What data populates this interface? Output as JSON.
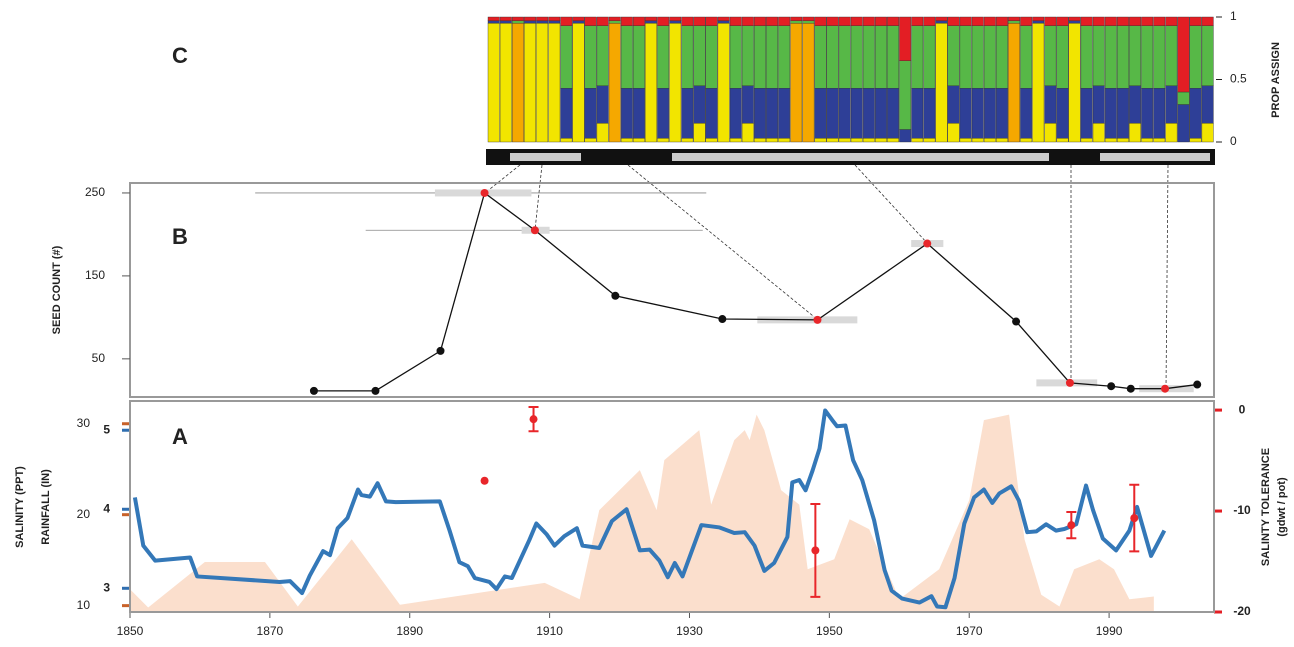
{
  "chart_data": [
    {
      "type": "bar",
      "title": "C",
      "ylabel": "PROP ASSIGN",
      "ylim": [
        0,
        1
      ],
      "yticks": [
        0,
        0.5,
        1
      ],
      "series": [
        {
          "color": "#f2e500",
          "values": [
            0.95,
            0.95,
            0,
            0.95,
            0.95,
            0.95,
            0.03,
            0.95,
            0.03,
            0.15,
            0,
            0.03,
            0.03,
            0.95,
            0.03,
            0.95,
            0.03,
            0.15,
            0.03,
            0.95,
            0.03,
            0.15,
            0.03,
            0.03,
            0.03,
            0,
            0,
            0.03,
            0.03,
            0.03,
            0.03,
            0.03,
            0.03,
            0.03,
            0,
            0.03,
            0.03,
            0.95,
            0.15,
            0.03,
            0.03,
            0.03,
            0.03,
            0,
            0.03,
            0.95,
            0.15,
            0.03,
            0.95,
            0.03,
            0.15,
            0.03,
            0.03,
            0.15,
            0.03,
            0.03,
            0.15,
            0,
            0.03,
            0.15
          ]
        },
        {
          "color": "#f5a800",
          "values": [
            0,
            0,
            0.95,
            0,
            0,
            0,
            0,
            0,
            0,
            0,
            0.95,
            0,
            0,
            0,
            0,
            0,
            0,
            0,
            0,
            0,
            0,
            0,
            0,
            0,
            0,
            0.95,
            0.95,
            0,
            0,
            0,
            0,
            0,
            0,
            0,
            0,
            0,
            0,
            0,
            0,
            0,
            0,
            0,
            0,
            0.95,
            0,
            0,
            0,
            0,
            0,
            0,
            0,
            0,
            0,
            0,
            0,
            0,
            0,
            0,
            0,
            0
          ]
        },
        {
          "color": "#2e3f97",
          "values": [
            0.02,
            0.02,
            0,
            0.02,
            0.02,
            0.02,
            0.4,
            0.02,
            0.4,
            0.3,
            0,
            0.4,
            0.4,
            0.02,
            0.4,
            0.02,
            0.4,
            0.3,
            0.4,
            0.02,
            0.4,
            0.3,
            0.4,
            0.4,
            0.4,
            0,
            0,
            0.4,
            0.4,
            0.4,
            0.4,
            0.4,
            0.4,
            0.4,
            0.1,
            0.4,
            0.4,
            0.02,
            0.3,
            0.4,
            0.4,
            0.4,
            0.4,
            0,
            0.4,
            0.02,
            0.3,
            0.4,
            0.02,
            0.4,
            0.3,
            0.4,
            0.4,
            0.3,
            0.4,
            0.4,
            0.3,
            0.3,
            0.4,
            0.3
          ]
        },
        {
          "color": "#57b847",
          "values": [
            0,
            0,
            0.02,
            0,
            0,
            0,
            0.5,
            0,
            0.5,
            0.48,
            0.02,
            0.5,
            0.5,
            0,
            0.5,
            0,
            0.5,
            0.48,
            0.5,
            0,
            0.5,
            0.48,
            0.5,
            0.5,
            0.5,
            0.02,
            0.02,
            0.5,
            0.5,
            0.5,
            0.5,
            0.5,
            0.5,
            0.5,
            0.55,
            0.5,
            0.5,
            0,
            0.48,
            0.5,
            0.5,
            0.5,
            0.5,
            0.02,
            0.5,
            0,
            0.48,
            0.5,
            0,
            0.5,
            0.48,
            0.5,
            0.5,
            0.48,
            0.5,
            0.5,
            0.48,
            0.1,
            0.5,
            0.48
          ]
        },
        {
          "color": "#e31e24",
          "values": [
            0.03,
            0.03,
            0.03,
            0.03,
            0.03,
            0.03,
            0.07,
            0.03,
            0.07,
            0.07,
            0.03,
            0.07,
            0.07,
            0.03,
            0.07,
            0.03,
            0.07,
            0.07,
            0.07,
            0.03,
            0.07,
            0.07,
            0.07,
            0.07,
            0.07,
            0.03,
            0.03,
            0.07,
            0.07,
            0.07,
            0.07,
            0.07,
            0.07,
            0.07,
            0.35,
            0.07,
            0.07,
            0.03,
            0.07,
            0.07,
            0.07,
            0.07,
            0.07,
            0.03,
            0.07,
            0.03,
            0.07,
            0.07,
            0.03,
            0.07,
            0.07,
            0.07,
            0.07,
            0.07,
            0.07,
            0.07,
            0.07,
            0.6,
            0.07,
            0.07
          ]
        }
      ]
    },
    {
      "type": "line",
      "title": "B",
      "ylabel": "SEED COUNT (#)",
      "xlim": [
        1850,
        2005
      ],
      "ylim": [
        4,
        262
      ],
      "yticks": [
        50,
        150,
        250
      ],
      "color": "#111111",
      "x": [
        1876.3,
        1885.1,
        1894.4,
        1900.7,
        1907.9,
        1919.4,
        1934.7,
        1948.3,
        1964,
        1976.7,
        1984.4,
        1990.3,
        1993.1,
        1998,
        2002.6
      ],
      "values": [
        11.4,
        11.4,
        59.6,
        250,
        205,
        126,
        98,
        97,
        189,
        95,
        21,
        17,
        14,
        14,
        19
      ],
      "point_colors": [
        "#111111",
        "#111111",
        "#111111",
        "#e8262a",
        "#e8262a",
        "#111111",
        "#111111",
        "#e8262a",
        "#e8262a",
        "#111111",
        "#e8262a",
        "#111111",
        "#111111",
        "#e8262a",
        "#111111"
      ],
      "range_bars": [
        {
          "x": [
            1893.6,
            1907.4
          ],
          "y": 250
        },
        {
          "x": [
            1906,
            1910
          ],
          "y": 205
        },
        {
          "x": [
            1939.7,
            1954
          ],
          "y": 97
        },
        {
          "x": [
            1961.7,
            1966.3
          ],
          "y": 189
        },
        {
          "x": [
            1979.6,
            1988.3
          ],
          "y": 21
        },
        {
          "x": [
            1994.3,
            2002.1
          ],
          "y": 14
        }
      ],
      "range_lines": [
        {
          "x": [
            1867.9,
            1932.4
          ],
          "y": 250
        },
        {
          "x": [
            1883.7,
            1931.9
          ],
          "y": 205
        }
      ]
    },
    {
      "type": "area_line",
      "title": "A",
      "xlim": [
        1850,
        2005
      ],
      "xticks": [
        1850,
        1870,
        1890,
        1910,
        1930,
        1950,
        1970,
        1990
      ],
      "ylabel": "RAINFALL (IN)",
      "ylim": [
        2.7,
        5.37
      ],
      "yticks": [
        3,
        4,
        5
      ],
      "salinity_label": "SALINITY (PPT)",
      "salinity_lim": [
        9.3,
        32.5
      ],
      "salinity_ticks": [
        10,
        20,
        30
      ],
      "y2label": [
        "SALINTY TOLERANCE",
        "(gdwt / pot)"
      ],
      "y2lim": [
        -20,
        0.9
      ],
      "y2ticks": [
        0,
        -10,
        -20
      ],
      "salinity": {
        "color": "#fbdfcd",
        "x": [
          1850,
          1852.6,
          1860.7,
          1869.3,
          1874,
          1881.7,
          1888.6,
          1909.3,
          1914.3,
          1917.1,
          1922.9,
          1925.3,
          1926.4,
          1931.4,
          1933.1,
          1936.4,
          1937.9,
          1938.6,
          1939.6,
          1940.7,
          1943.1,
          1945.7,
          1946.9,
          1950.7,
          1952.9,
          1955.7,
          1960,
          1965.7,
          1970,
          1972.1,
          1975.7,
          1977.9,
          1980.3,
          1982.9,
          1985,
          1988.6,
          1990.7,
          1992.9,
          1996.4
        ],
        "values": [
          11.8,
          9.8,
          14.8,
          14.8,
          9.9,
          17.3,
          10.1,
          12.5,
          10.7,
          20.5,
          24.9,
          20.5,
          26,
          29.3,
          21.1,
          28.2,
          29.3,
          28.2,
          31,
          29.3,
          22.7,
          21.1,
          14,
          15.1,
          19.5,
          18.4,
          10.7,
          14,
          21.6,
          30.4,
          31,
          17.3,
          11.2,
          9.9,
          14,
          15.1,
          14,
          10.7,
          11
        ]
      },
      "rainfall": {
        "color": "#3478b8",
        "x": [
          1850.7,
          1851.9,
          1853.6,
          1858.6,
          1859.6,
          1871.4,
          1872.9,
          1874.6,
          1875.7,
          1877.6,
          1878.6,
          1879.7,
          1881.1,
          1882.6,
          1883.1,
          1884.3,
          1885.4,
          1886.6,
          1888,
          1894.3,
          1895.7,
          1897.1,
          1898.3,
          1899.3,
          1901.4,
          1902.4,
          1903.6,
          1904.6,
          1907.1,
          1908.1,
          1909.6,
          1910.7,
          1912.1,
          1913.9,
          1914.7,
          1917.1,
          1918.9,
          1921,
          1922.9,
          1924.3,
          1925.7,
          1926.9,
          1927.9,
          1929,
          1929.7,
          1931.7,
          1934.3,
          1936.4,
          1937.9,
          1939.3,
          1940.7,
          1942.1,
          1944,
          1944.7,
          1945.7,
          1946.6,
          1947.6,
          1948.6,
          1949.4,
          1950.4,
          1951.1,
          1952.3,
          1953.4,
          1954.7,
          1956.4,
          1957.9,
          1958.9,
          1960.4,
          1962.9,
          1964.6,
          1965.4,
          1966.6,
          1967.9,
          1969.3,
          1970.7,
          1972.1,
          1973.3,
          1974.3,
          1976,
          1977.1,
          1978.3,
          1979.6,
          1981,
          1982.4,
          1983.6,
          1985.3,
          1986.7,
          1987.7,
          1989.1,
          1991,
          1992.9,
          1994,
          1996,
          1997.9
        ],
        "values": [
          4.15,
          3.54,
          3.35,
          3.39,
          3.15,
          3.08,
          3.09,
          2.94,
          3.16,
          3.47,
          3.42,
          3.76,
          3.89,
          4.25,
          4.18,
          4.16,
          4.33,
          4.1,
          4.09,
          4.1,
          3.73,
          3.33,
          3.28,
          3.13,
          3.08,
          2.99,
          3.15,
          3.13,
          3.61,
          3.82,
          3.68,
          3.54,
          3.66,
          3.76,
          3.54,
          3.51,
          3.85,
          4,
          3.48,
          3.49,
          3.35,
          3.14,
          3.32,
          3.15,
          3.32,
          3.8,
          3.77,
          3.7,
          3.71,
          3.54,
          3.22,
          3.32,
          3.65,
          4.34,
          4.37,
          4.24,
          4.49,
          4.77,
          5.25,
          5.13,
          5.05,
          5.06,
          4.62,
          4.37,
          3.86,
          3.23,
          2.97,
          2.87,
          2.82,
          2.9,
          2.77,
          2.76,
          3.13,
          3.82,
          4.15,
          4.25,
          4.08,
          4.2,
          4.29,
          4.11,
          3.71,
          3.72,
          3.81,
          3.73,
          3.75,
          3.81,
          4.3,
          3.99,
          3.63,
          3.48,
          3.73,
          4.03,
          3.41,
          3.73
        ]
      },
      "tolerance": {
        "color": "#e8262a",
        "x": [
          1900.7,
          1907.7,
          1948,
          1984.6,
          1993.6
        ],
        "values": [
          -7,
          -0.9,
          -13.9,
          -11.4,
          -10.7
        ],
        "errors": [
          null,
          1.2,
          4.6,
          1.3,
          3.3
        ]
      }
    }
  ]
}
